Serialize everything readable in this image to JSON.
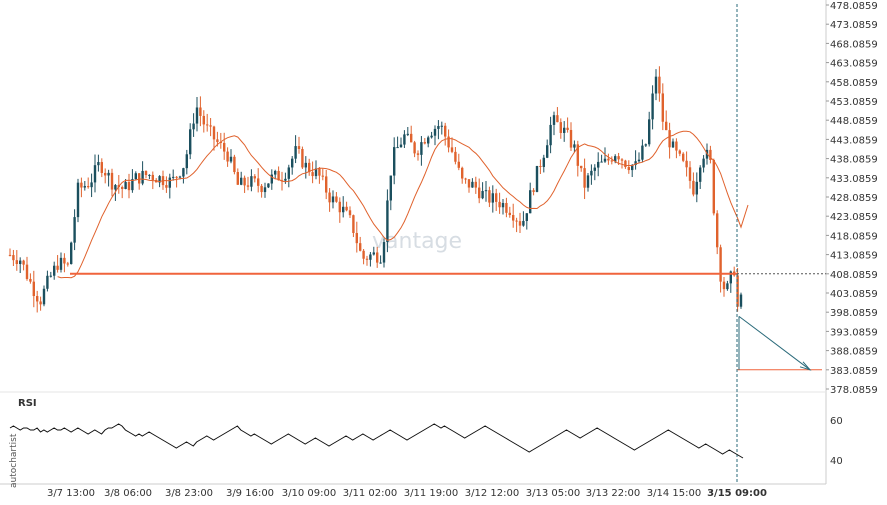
{
  "chart_data": {
    "type": "candlestick",
    "ylim": [
      378.0859,
      478.0859
    ],
    "y_ticks": [
      "478.0859",
      "473.0859",
      "468.0859",
      "463.0859",
      "458.0859",
      "453.0859",
      "448.0859",
      "443.0859",
      "438.0859",
      "433.0859",
      "428.0859",
      "423.0859",
      "418.0859",
      "413.0859",
      "408.0859",
      "403.0859",
      "398.0859",
      "393.0859",
      "388.0859",
      "383.0859",
      "378.0859"
    ],
    "x_ticks": [
      "3/7 13:00",
      "3/8 06:00",
      "3/8 23:00",
      "3/9 16:00",
      "3/10 09:00",
      "3/11 02:00",
      "3/11 19:00",
      "3/12 12:00",
      "3/13 05:00",
      "3/13 22:00",
      "3/14 15:00",
      "3/15 09:00"
    ],
    "highlighted_x_tick": "3/15 09:00",
    "support_level": 408.0859,
    "target_level": 383.0859,
    "rsi": {
      "label": "RSI",
      "ticks": [
        "60",
        "40"
      ],
      "ylim": [
        30,
        70
      ],
      "values": [
        56,
        57,
        56,
        55,
        56,
        56,
        55,
        55,
        56,
        54,
        55,
        54,
        55,
        56,
        55,
        55,
        56,
        55,
        54,
        55,
        56,
        55,
        54,
        53,
        54,
        55,
        54,
        53,
        55,
        56,
        56,
        57,
        58,
        57,
        55,
        54,
        53,
        52,
        53,
        52,
        53,
        54,
        53,
        52,
        51,
        50,
        49,
        48,
        47,
        46,
        47,
        48,
        49,
        48,
        47,
        49,
        50,
        51,
        52,
        51,
        50,
        51,
        52,
        53,
        54,
        55,
        56,
        57,
        55,
        54,
        53,
        52,
        53,
        52,
        51,
        50,
        49,
        48,
        49,
        50,
        51,
        52,
        53,
        52,
        51,
        50,
        49,
        48,
        49,
        50,
        51,
        50,
        49,
        48,
        47,
        48,
        49,
        50,
        51,
        52,
        51,
        50,
        51,
        52,
        53,
        52,
        51,
        50,
        51,
        52,
        53,
        54,
        55,
        54,
        53,
        52,
        51,
        50,
        51,
        52,
        53,
        54,
        55,
        56,
        57,
        58,
        57,
        56,
        57,
        56,
        55,
        54,
        53,
        52,
        51,
        52,
        53,
        54,
        55,
        56,
        57,
        56,
        55,
        54,
        53,
        52,
        51,
        50,
        49,
        48,
        47,
        46,
        45,
        44,
        45,
        46,
        47,
        48,
        49,
        50,
        51,
        52,
        53,
        54,
        55,
        54,
        53,
        52,
        51,
        52,
        53,
        54,
        55,
        56,
        55,
        54,
        53,
        52,
        51,
        50,
        49,
        48,
        47,
        46,
        45,
        46,
        47,
        48,
        49,
        50,
        51,
        52,
        53,
        54,
        55,
        54,
        53,
        52,
        51,
        50,
        49,
        48,
        47,
        46,
        47,
        48,
        47,
        46,
        45,
        44,
        43,
        44,
        45,
        44,
        43,
        42,
        41
      ],
      "colors": {
        "line": "#111111"
      }
    },
    "watermark": "vantage",
    "side_label": "autochartist",
    "colors": {
      "up": "#1b4f5e",
      "down": "#e0622d",
      "ma": "#e0622d",
      "support": "#f0643c",
      "arrow": "#2a6a7a"
    }
  }
}
